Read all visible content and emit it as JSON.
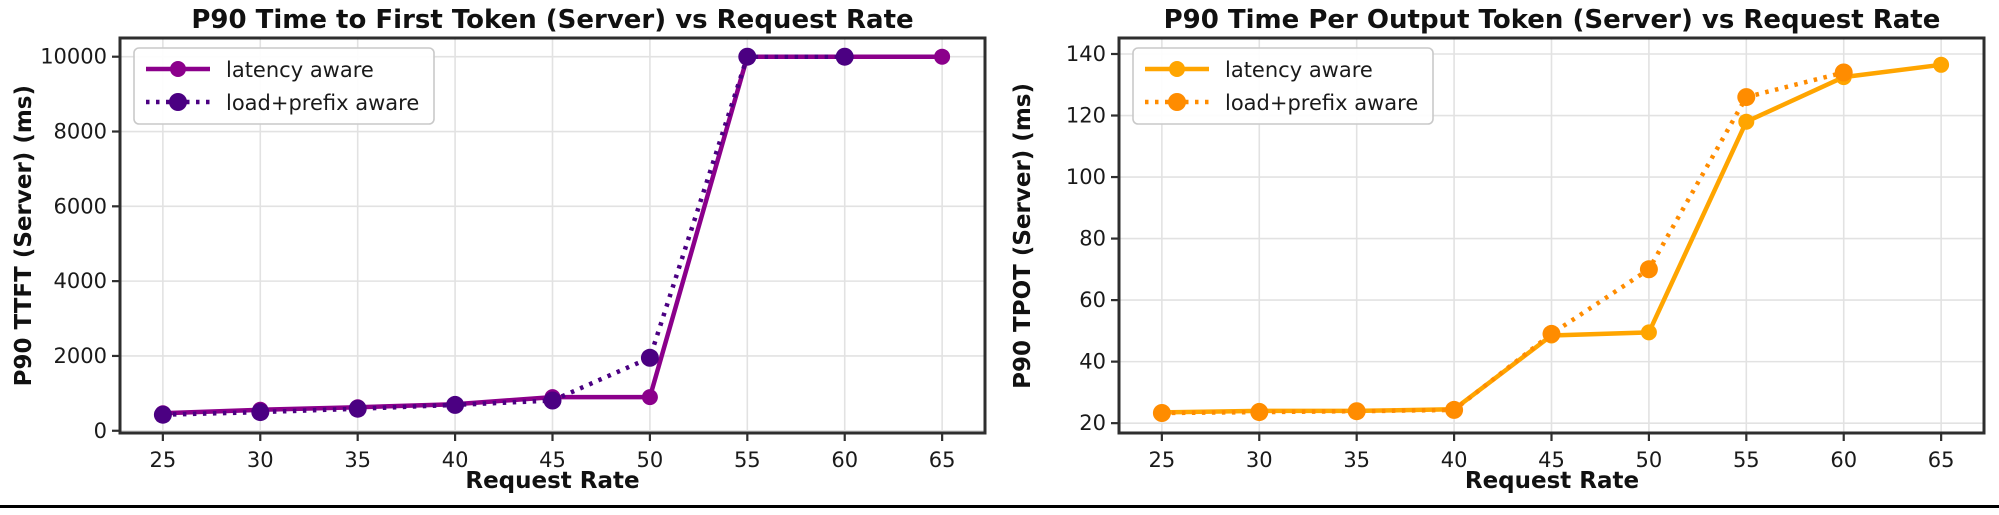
{
  "page": {
    "background": "#ffffff",
    "bottom_rule_color": "#000000"
  },
  "chart_data": [
    {
      "type": "line",
      "title": "P90 Time to First Token (Server) vs Request Rate",
      "xlabel": "Request Rate",
      "ylabel": "P90 TTFT (Server) (ms)",
      "x_ticks": [
        25,
        30,
        35,
        40,
        45,
        50,
        55,
        60,
        65
      ],
      "y_ticks": [
        0,
        2000,
        4000,
        6000,
        8000,
        10000
      ],
      "xlim": [
        22.8,
        67.2
      ],
      "ylim": [
        -60,
        10500
      ],
      "grid": true,
      "grid_color": "#e2e2e2",
      "spine_color": "#2e2e2e",
      "legend_position": "upper-left",
      "series": [
        {
          "name": "latency aware",
          "style": "solid",
          "color": "#8B008B",
          "x": [
            25,
            30,
            35,
            40,
            45,
            50,
            55,
            60,
            65
          ],
          "y": [
            470,
            560,
            630,
            710,
            900,
            900,
            10000,
            10000,
            10000
          ]
        },
        {
          "name": "load+prefix aware",
          "style": "dotted",
          "color": "#4B0082",
          "x": [
            25,
            30,
            35,
            40,
            45,
            50,
            55,
            60
          ],
          "y": [
            430,
            500,
            590,
            690,
            810,
            1950,
            10000,
            10000
          ]
        }
      ]
    },
    {
      "type": "line",
      "title": "P90 Time Per Output Token (Server) vs Request Rate",
      "xlabel": "Request Rate",
      "ylabel": "P90 TPOT (Server) (ms)",
      "x_ticks": [
        25,
        30,
        35,
        40,
        45,
        50,
        55,
        60,
        65
      ],
      "y_ticks": [
        20,
        40,
        60,
        80,
        100,
        120,
        140
      ],
      "xlim": [
        22.8,
        67.2
      ],
      "ylim": [
        16.8,
        145.2
      ],
      "grid": true,
      "grid_color": "#e2e2e2",
      "spine_color": "#2e2e2e",
      "legend_position": "upper-left",
      "series": [
        {
          "name": "latency aware",
          "style": "solid",
          "color": "#FFA500",
          "x": [
            25,
            30,
            35,
            40,
            45,
            50,
            55,
            60,
            65
          ],
          "y": [
            23.5,
            24,
            24,
            24.5,
            48.5,
            49.5,
            118,
            132.5,
            136.5
          ]
        },
        {
          "name": "load+prefix aware",
          "style": "dotted",
          "color": "#FF8C00",
          "x": [
            25,
            30,
            35,
            40,
            45,
            50,
            55,
            60
          ],
          "y": [
            23.3,
            23.6,
            23.9,
            24.3,
            49,
            70,
            126,
            134
          ]
        }
      ]
    }
  ]
}
